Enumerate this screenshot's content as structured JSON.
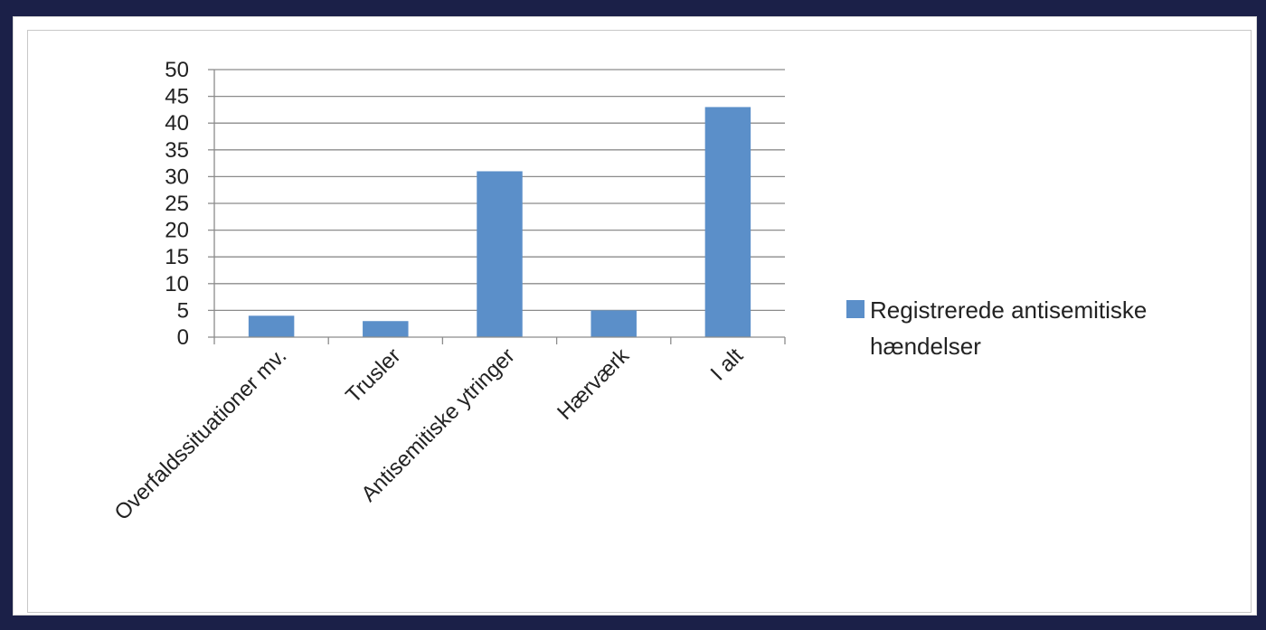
{
  "chart_data": {
    "type": "bar",
    "title": "",
    "xlabel": "",
    "ylabel": "",
    "categories": [
      "Overfaldssituationer mv.",
      "Trusler",
      "Antisemitiske ytringer",
      "Hærværk",
      "I alt"
    ],
    "series": [
      {
        "name": "Registrerede antisemitiske hændelser",
        "values": [
          4,
          3,
          31,
          5,
          43
        ],
        "color": "#5b8fc9"
      }
    ],
    "ylim": [
      0,
      50
    ],
    "yticks": [
      "0",
      "5",
      "10",
      "15",
      "20",
      "25",
      "30",
      "35",
      "40",
      "45",
      "50"
    ],
    "grid": true,
    "legend_position": "right",
    "legend_lines": [
      "Registrerede antisemitiske",
      "hændelser"
    ]
  }
}
